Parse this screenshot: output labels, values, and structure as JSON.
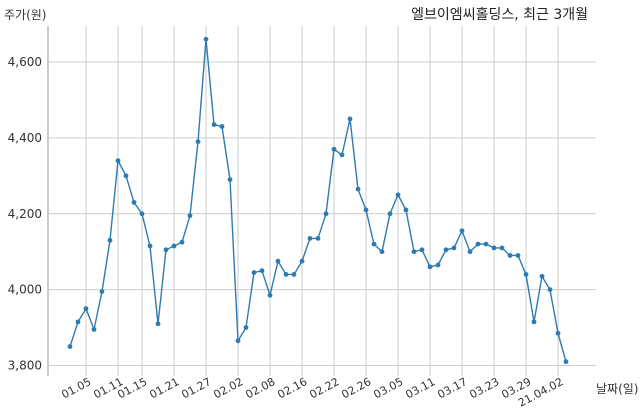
{
  "chart_data": {
    "type": "line",
    "title": "엘브이엠씨홀딩스, 최근 3개월",
    "ylabel": "주가(원)",
    "xlabel": "날짜(일)",
    "ylim": [
      3800,
      4700
    ],
    "yticks": [
      3800,
      4000,
      4200,
      4400,
      4600
    ],
    "ytick_labels": [
      "3,800",
      "4,000",
      "4,200",
      "4,400",
      "4,600"
    ],
    "xtick_labels": [
      "01.05",
      "01.11",
      "01.15",
      "01.21",
      "01.27",
      "02.02",
      "02.08",
      "02.16",
      "02.22",
      "02.26",
      "03.05",
      "03.11",
      "03.17",
      "03.23",
      "03.29",
      "21.04.02"
    ],
    "xtick_index": [
      2,
      6,
      9,
      13,
      17,
      21,
      25,
      29,
      33,
      37,
      41,
      45,
      49,
      53,
      57,
      61
    ],
    "grid": true,
    "line_color": "#2e7bb0",
    "series": [
      {
        "values": [
          3850,
          3915,
          3950,
          3895,
          3995,
          4130,
          4340,
          4300,
          4230,
          4200,
          4115,
          3910,
          4105,
          4115,
          4125,
          4195,
          4390,
          4660,
          4435,
          4430,
          4290,
          3865,
          3900,
          4045,
          4050,
          3985,
          4075,
          4040,
          4040,
          4075,
          4135,
          4135,
          4200,
          4370,
          4355,
          4450,
          4265,
          4210,
          4120,
          4100,
          4200,
          4250,
          4210,
          4100,
          4105,
          4060,
          4065,
          4105,
          4110,
          4155,
          4100,
          4120,
          4120,
          4110,
          4110,
          4090,
          4090,
          4040,
          3915,
          4035,
          4000,
          3885,
          3810
        ]
      }
    ]
  }
}
